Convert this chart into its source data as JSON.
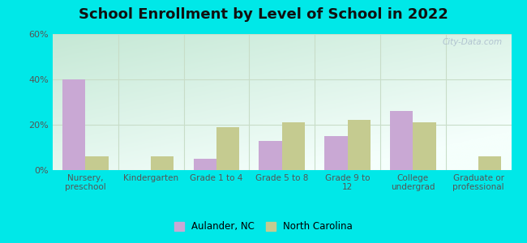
{
  "title": "School Enrollment by Level of School in 2022",
  "categories": [
    "Nursery,\npreschool",
    "Kindergarten",
    "Grade 1 to 4",
    "Grade 5 to 8",
    "Grade 9 to\n12",
    "College\nundergrad",
    "Graduate or\nprofessional"
  ],
  "aulander": [
    40,
    0,
    5,
    13,
    15,
    26,
    0
  ],
  "nc": [
    6,
    6,
    19,
    21,
    22,
    21,
    6
  ],
  "aulander_color": "#c9a8d4",
  "nc_color": "#c5cb90",
  "ylim": [
    0,
    60
  ],
  "yticks": [
    0,
    20,
    40,
    60
  ],
  "ytick_labels": [
    "0%",
    "20%",
    "40%",
    "60%"
  ],
  "bg_outer": "#00e8e8",
  "grid_color": "#c8ddc8",
  "legend_label_1": "Aulander, NC",
  "legend_label_2": "North Carolina",
  "watermark": "City-Data.com",
  "bar_width": 0.35,
  "title_fontsize": 13
}
